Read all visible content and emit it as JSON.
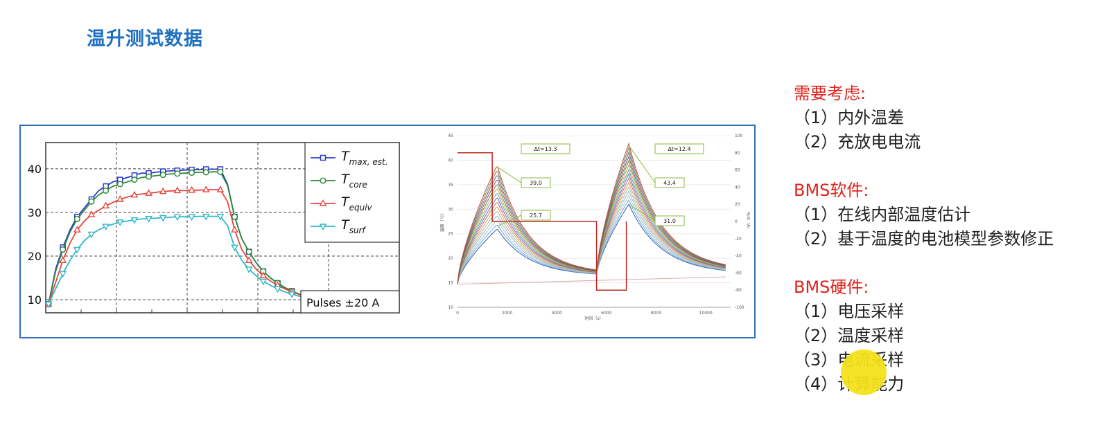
{
  "title": "温升测试数据",
  "notes": [
    {
      "heading": "需要考虑:",
      "items": [
        "（1）内外温差",
        "（2）充放电电流"
      ]
    },
    {
      "heading": "BMS软件:",
      "items": [
        "（1）在线内部温度估计",
        "（2）基于温度的电池模型参数修正"
      ]
    },
    {
      "heading": "BMS硬件:",
      "items": [
        "（1）电压采样",
        "（2）温度采样",
        "（3）电流采样",
        "（4）计算能力"
      ]
    }
  ],
  "colors": {
    "title": "#1f6fc2",
    "heading": "#e0221b",
    "frame": "#2f6fb6",
    "highlight": "#f3e21a"
  },
  "chart_data": [
    {
      "type": "line",
      "ylim": [
        7,
        46
      ],
      "yticks": [
        "10",
        "20",
        "30",
        "40"
      ],
      "x": [
        0,
        1,
        2,
        3,
        4,
        5,
        6,
        7,
        8,
        9,
        10,
        11,
        12,
        13,
        14,
        15,
        16,
        17,
        18,
        19,
        20,
        21,
        22,
        23,
        24,
        25,
        26,
        27,
        28,
        29,
        30,
        31,
        32,
        33,
        34,
        35,
        36,
        37,
        38,
        39,
        40,
        41,
        42,
        43,
        44,
        45,
        46,
        47,
        48,
        49
      ],
      "series": [
        {
          "name": "T",
          "sub": "max, est.",
          "color": "#2d3bd1",
          "marker": "square",
          "values": [
            9,
            17,
            22,
            26,
            29,
            31,
            33,
            35,
            36,
            37,
            37.5,
            38,
            38.5,
            39,
            39,
            39.2,
            39.4,
            39.5,
            39.6,
            39.7,
            39.8,
            39.8,
            39.9,
            39.9,
            39.9,
            36.5,
            29,
            24,
            21,
            18.5,
            16.5,
            15,
            13.8,
            12.8,
            12,
            11.3,
            10.8,
            10.4,
            10.2,
            10,
            9.9,
            9.8,
            9.7,
            9.6,
            9.5,
            9.4,
            9.3,
            9.2,
            9.1,
            9.0
          ]
        },
        {
          "name": "T",
          "sub": "core",
          "color": "#2e8b3a",
          "marker": "circle",
          "values": [
            9,
            16.5,
            21.5,
            25.5,
            28.5,
            30.5,
            32.5,
            34,
            35,
            36,
            36.5,
            37,
            37.5,
            38,
            38.2,
            38.4,
            38.6,
            38.8,
            38.9,
            39,
            39.1,
            39.2,
            39.2,
            39.3,
            39.3,
            36.2,
            29,
            24,
            21,
            18.5,
            16.5,
            15,
            13.8,
            12.8,
            12,
            11.3,
            10.8,
            10.4,
            10.2,
            10,
            9.9,
            9.8,
            9.7,
            9.6,
            9.5,
            9.4,
            9.3,
            9.2,
            9.1,
            9.0
          ]
        },
        {
          "name": "T",
          "sub": "equiv",
          "color": "#e8453c",
          "marker": "triangle",
          "values": [
            9,
            14,
            19,
            23,
            26,
            28,
            29.5,
            30.5,
            31.5,
            32.3,
            33,
            33.5,
            34,
            34.2,
            34.4,
            34.6,
            34.8,
            34.9,
            35,
            35,
            35.1,
            35.1,
            35.2,
            35.2,
            35.2,
            32.5,
            26,
            21.5,
            19,
            17,
            15.5,
            14.3,
            13.3,
            12.5,
            11.8,
            11.2,
            10.7,
            10.3,
            10.1,
            9.9,
            9.8,
            9.7,
            9.6,
            9.5,
            9.4,
            9.3,
            9.2,
            9.1,
            9.0,
            8.9
          ]
        },
        {
          "name": "T",
          "sub": "surf",
          "color": "#2fb8c8",
          "marker": "triangle-down",
          "values": [
            9,
            12.5,
            16,
            19,
            21.5,
            23.5,
            25,
            26,
            26.8,
            27.3,
            27.8,
            28,
            28.3,
            28.5,
            28.6,
            28.7,
            28.8,
            28.9,
            29,
            29,
            29,
            29.1,
            29.1,
            29.1,
            29.1,
            27,
            22,
            19,
            17,
            15.5,
            14.2,
            13.3,
            12.5,
            11.8,
            11.3,
            10.8,
            10.4,
            10.1,
            9.9,
            9.7,
            9.6,
            9.5,
            9.4,
            9.3,
            9.2,
            9.1,
            9.0,
            8.9,
            8.8,
            8.7
          ]
        }
      ],
      "annotation": "Pulses ±20 A"
    },
    {
      "type": "line",
      "xlim": [
        0,
        11000
      ],
      "ylim": [
        10,
        45
      ],
      "y2lim": [
        -100,
        100
      ],
      "xticks": [
        "0",
        "2000",
        "4000",
        "6000",
        "8000",
        "10000"
      ],
      "yticks": [
        "10",
        "15",
        "20",
        "25",
        "30",
        "35",
        "40",
        "45"
      ],
      "y2ticks": [
        "-100",
        "-80",
        "-60",
        "-40",
        "-20",
        "0",
        "20",
        "40",
        "60",
        "80",
        "100"
      ],
      "xlabel": "时间（s）",
      "ylabel": "温度（℃）",
      "y2label": "电流（A）",
      "callouts": [
        "Δt=13.3",
        "39.0",
        "25.7",
        "Δt=12.4",
        "43.4",
        "31.0"
      ]
    }
  ]
}
